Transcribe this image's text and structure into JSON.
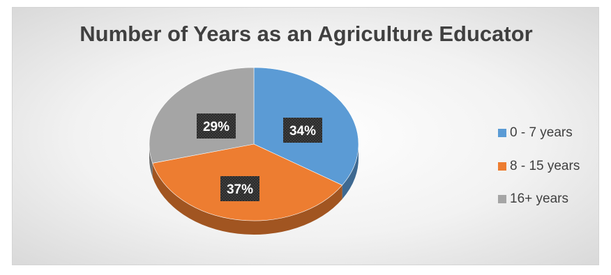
{
  "chart_data": {
    "type": "pie",
    "title": "Number of Years as an Agriculture Educator",
    "categories": [
      "0 - 7 years",
      "8 - 15 years",
      "16+ years"
    ],
    "values": [
      34,
      37,
      29
    ],
    "labels": [
      "34%",
      "37%",
      "29%"
    ],
    "colors": [
      "#5b9bd5",
      "#ed7d31",
      "#a5a5a5"
    ],
    "style": "3d",
    "legend": "right"
  }
}
